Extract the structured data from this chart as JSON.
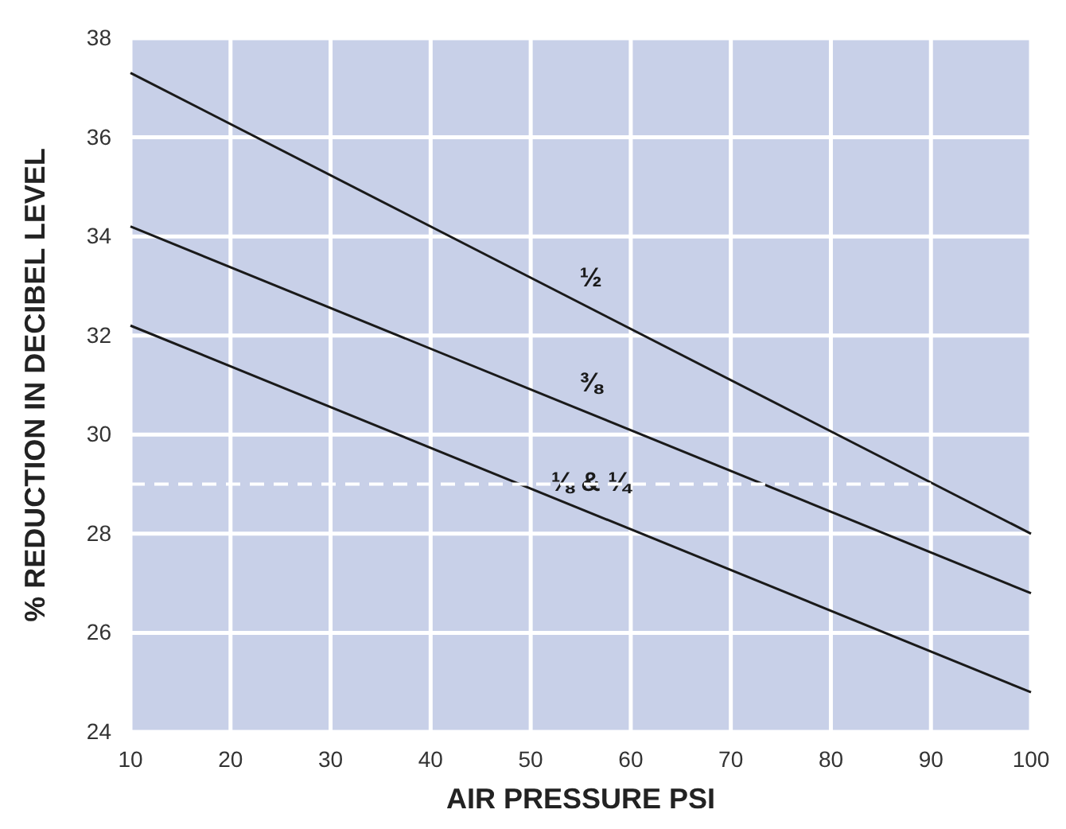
{
  "chart_data": {
    "type": "line",
    "xlabel": "AIR PRESSURE PSI",
    "ylabel": "% REDUCTION IN DECIBEL LEVEL",
    "xlim": [
      10,
      100
    ],
    "ylim": [
      24,
      38
    ],
    "xticks": [
      10,
      20,
      30,
      40,
      50,
      60,
      70,
      80,
      90,
      100
    ],
    "yticks": [
      24,
      26,
      28,
      30,
      32,
      34,
      36,
      38
    ],
    "grid": true,
    "series": [
      {
        "name": "½",
        "color": "#1a1a1a",
        "x": [
          10,
          100
        ],
        "values": [
          37.3,
          28.0
        ]
      },
      {
        "name": "⅜",
        "color": "#1a1a1a",
        "x": [
          10,
          100
        ],
        "values": [
          34.2,
          26.8
        ]
      },
      {
        "name": "⅛ & ¼",
        "color": "#1a1a1a",
        "x": [
          10,
          100
        ],
        "values": [
          32.2,
          24.8
        ]
      },
      {
        "color": "#ffffff",
        "x": [
          10,
          90
        ],
        "values": [
          29,
          29
        ],
        "line_style": "dashed"
      }
    ]
  }
}
